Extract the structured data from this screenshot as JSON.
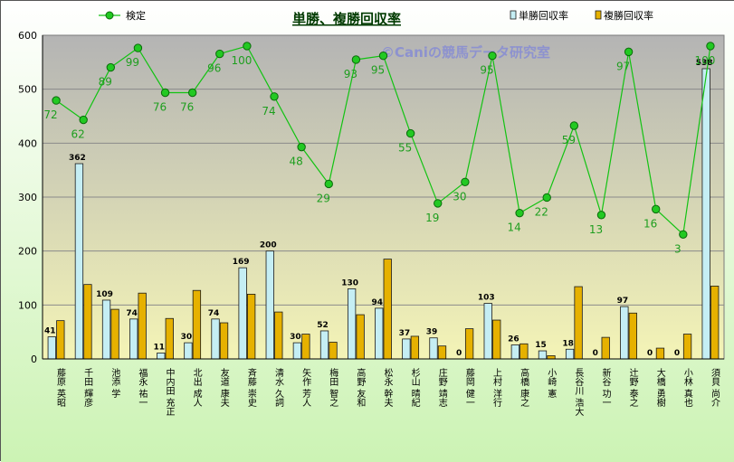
{
  "chart_data": {
    "type": "bar",
    "title": "単勝、複勝回収率",
    "watermark": "©Caniの競馬データ研究室",
    "categories": [
      "藤原 英昭",
      "千田 輝彦",
      "池添 学",
      "福永 祐一",
      "中内田 充正",
      "北出 成人",
      "友道 康夫",
      "斉藤 崇史",
      "清水 久詞",
      "矢作 芳人",
      "梅田 智之",
      "高野 友和",
      "松永 幹夫",
      "杉山 晴紀",
      "庄野 靖志",
      "藤岡 健一",
      "上村 洋行",
      "高橋 康之",
      "小崎 憲",
      "長谷川 浩大",
      "新谷 功一",
      "辻野 泰之",
      "大橋 勇樹",
      "小林 真也",
      "須貝 尚介"
    ],
    "series": [
      {
        "name": "単勝回収率",
        "type": "bar",
        "color": "#c5eef4",
        "values": [
          41,
          362,
          109,
          74,
          11,
          30,
          74,
          169,
          200,
          30,
          52,
          130,
          94,
          37,
          39,
          0,
          103,
          26,
          15,
          18,
          0,
          97,
          0,
          0,
          538
        ]
      },
      {
        "name": "複勝回収率",
        "type": "bar",
        "color": "#e6b100",
        "values": [
          71,
          138,
          92,
          122,
          75,
          127,
          67,
          120,
          87,
          46,
          31,
          82,
          185,
          42,
          24,
          56,
          72,
          28,
          6,
          134,
          40,
          85,
          20,
          46,
          135
        ]
      },
      {
        "name": "検定",
        "type": "line",
        "color": "#12c312",
        "values": [
          72,
          62,
          89,
          99,
          76,
          76,
          96,
          100,
          74,
          48,
          29,
          93,
          95,
          55,
          19,
          30,
          95,
          14,
          22,
          59,
          13,
          97,
          16,
          3,
          100
        ]
      }
    ],
    "ylim": [
      0,
      600
    ],
    "yticks": [
      "0",
      "100",
      "200",
      "300",
      "400",
      "500",
      "600"
    ],
    "legend_position": "top",
    "grid": true,
    "colors": {
      "plot_top": "#b4b4b4",
      "plot_bottom": "#f4f4b6",
      "frame_top": "#ffffff",
      "frame_bottom": "#ccf3b4",
      "title_text": "#003a00"
    }
  }
}
